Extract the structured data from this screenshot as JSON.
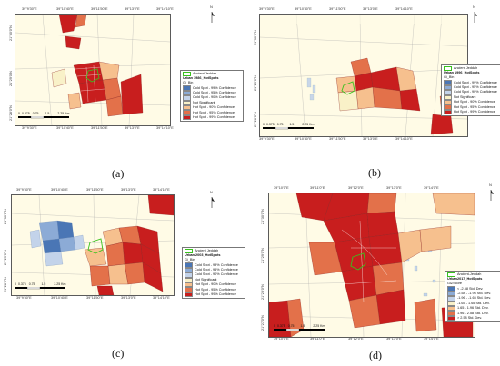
{
  "colors": {
    "cold99": "#4a76b5",
    "cold95": "#8cabd6",
    "cold90": "#c3d3ea",
    "notsig": "#f9f1c8",
    "hot90": "#f6c08e",
    "hot95": "#e3714a",
    "hot99": "#c81e1e",
    "jeddah": "#39c21d",
    "road": "#9a9a9a"
  },
  "panels": [
    {
      "caption": "(a)",
      "x_ticks": [
        "39°9'30\"E",
        "39°10'40\"E",
        "39°11'50\"E",
        "39°13'0\"E",
        "39°14'10\"E"
      ],
      "y_ticks": [
        "21°30'0\"N",
        "21°29'0\"N",
        "21°28'0\"N"
      ],
      "legend": {
        "items": [
          {
            "label": "Ancient Jeddah",
            "color_key": "jeddah_outline"
          },
          {
            "label": "Urban 1986_HotSpots",
            "heading": true
          },
          {
            "label": "Gi_Bin",
            "heading": true
          },
          {
            "label": "Cold Spot - 99% Confidence",
            "color_key": "cold99"
          },
          {
            "label": "Cold Spot - 95% Confidence",
            "color_key": "cold95"
          },
          {
            "label": "Cold Spot - 90% Confidence",
            "color_key": "cold90"
          },
          {
            "label": "Not Significant",
            "color_key": "notsig"
          },
          {
            "label": "Hot Spot - 90% Confidence",
            "color_key": "hot90"
          },
          {
            "label": "Hot Spot - 95% Confidence",
            "color_key": "hot95"
          },
          {
            "label": "Hot Spot - 99% Confidence",
            "color_key": "hot99"
          }
        ]
      },
      "scale": {
        "labels": [
          "0",
          "0.375",
          "0.75",
          "1.5",
          "2.25"
        ],
        "unit": "Km"
      }
    },
    {
      "caption": "(b)",
      "x_ticks": [
        "39°9'30\"E",
        "39°10'40\"E",
        "39°11'50\"E",
        "39°13'0\"E",
        "39°14'10\"E"
      ],
      "y_ticks": [
        "21°30'0\"N",
        "21°29'0\"N",
        "21°28'0\"N"
      ],
      "legend": {
        "items": [
          {
            "label": "Ancient Jeddah",
            "color_key": "jeddah_outline"
          },
          {
            "label": "Urban 1996_HotSpots",
            "heading": true
          },
          {
            "label": "Gi_Bin",
            "heading": true
          },
          {
            "label": "Cold Spot - 99% Confidence",
            "color_key": "cold99"
          },
          {
            "label": "Cold Spot - 95% Confidence",
            "color_key": "cold95"
          },
          {
            "label": "Cold Spot - 90% Confidence",
            "color_key": "cold90"
          },
          {
            "label": "Not Significant",
            "color_key": "notsig"
          },
          {
            "label": "Hot Spot - 90% Confidence",
            "color_key": "hot90"
          },
          {
            "label": "Hot Spot - 95% Confidence",
            "color_key": "hot95"
          },
          {
            "label": "Hot Spot - 99% Confidence",
            "color_key": "hot99"
          }
        ]
      },
      "scale": {
        "labels": [
          "0",
          "0.375",
          "0.75",
          "1.5",
          "2.25"
        ],
        "unit": "Km"
      }
    },
    {
      "caption": "(c)",
      "x_ticks": [
        "39°9'30\"E",
        "39°10'40\"E",
        "39°11'50\"E",
        "39°13'0\"E",
        "39°14'10\"E"
      ],
      "y_ticks": [
        "21°30'0\"N",
        "21°29'0\"N",
        "21°28'0\"N"
      ],
      "legend": {
        "items": [
          {
            "label": "Ancient Jeddah",
            "color_key": "jeddah_outline"
          },
          {
            "label": "Urban 2003_HotSpots",
            "heading": true
          },
          {
            "label": "Gi_Bin",
            "heading": true
          },
          {
            "label": "Cold Spot - 99% Confidence",
            "color_key": "cold99"
          },
          {
            "label": "Cold Spot - 95% Confidence",
            "color_key": "cold95"
          },
          {
            "label": "Cold Spot - 90% Confidence",
            "color_key": "cold90"
          },
          {
            "label": "Not Significant",
            "color_key": "notsig"
          },
          {
            "label": "Hot Spot - 90% Confidence",
            "color_key": "hot90"
          },
          {
            "label": "Hot Spot - 95% Confidence",
            "color_key": "hot95"
          },
          {
            "label": "Hot Spot - 99% Confidence",
            "color_key": "hot99"
          }
        ]
      },
      "scale": {
        "labels": [
          "0",
          "0.375",
          "0.75",
          "1.5",
          "2.25"
        ],
        "unit": "Km"
      }
    },
    {
      "caption": "(d)",
      "x_ticks": [
        "39°10'0\"E",
        "39°11'0\"E",
        "39°12'0\"E",
        "39°13'0\"E",
        "39°14'0\"E"
      ],
      "y_ticks": [
        "21°30'0\"N",
        "21°29'0\"N",
        "21°28'0\"N",
        "21°27'0\"N"
      ],
      "legend": {
        "items": [
          {
            "label": "Ancient-Jeddah",
            "color_key": "jeddah_outline"
          },
          {
            "label": "Urban2017_HotSpots",
            "heading": true
          },
          {
            "label": "GiZScore",
            "heading": true
          },
          {
            "label": "< -2.58 Std. Dev.",
            "color_key": "cold99"
          },
          {
            "label": "-2.58 - -1.96 Std. Dev.",
            "color_key": "cold95"
          },
          {
            "label": "-1.96 - -1.65 Std. Dev.",
            "color_key": "cold90"
          },
          {
            "label": "-1.65 - 1.65 Std. Dev.",
            "color_key": "notsig"
          },
          {
            "label": "1.65 - 1.96 Std. Dev.",
            "color_key": "hot90"
          },
          {
            "label": "1.96 - 2.58 Std. Dev.",
            "color_key": "hot95"
          },
          {
            "label": "> 2.58 Std. Dev.",
            "color_key": "hot99"
          }
        ]
      },
      "scale": {
        "labels": [
          "0",
          "0.375",
          "0.75",
          "1.5",
          "2.25"
        ],
        "unit": "Km"
      }
    }
  ],
  "north_label": "N"
}
